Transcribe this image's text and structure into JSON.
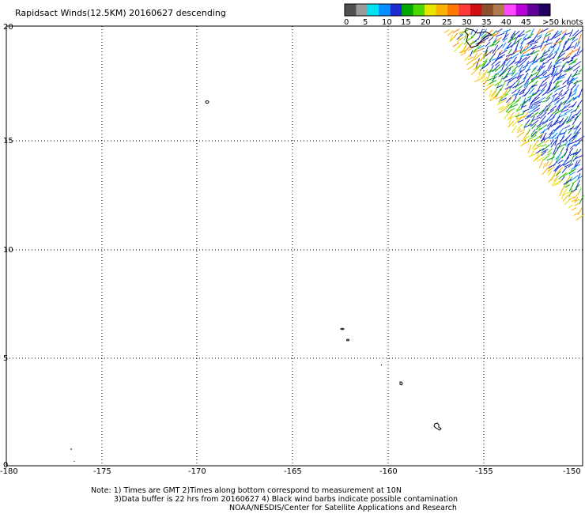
{
  "title": "Rapidsact Winds(12.5KM) 20160627 descending",
  "legend": {
    "colors": [
      "#505050",
      "#9a9a9a",
      "#00e2ef",
      "#0090ff",
      "#1c2cd0",
      "#00a800",
      "#4cd800",
      "#e6e600",
      "#f8b400",
      "#ff7800",
      "#ff3a3a",
      "#d01010",
      "#8a5030",
      "#b07a50",
      "#ff48ff",
      "#b800d8",
      "#600098",
      "#200060"
    ],
    "labels": [
      "0",
      "5",
      "10",
      "15",
      "20",
      "25",
      "30",
      "35",
      "40",
      "45",
      ">50 knots"
    ]
  },
  "axes": {
    "x_ticks": [
      "-180",
      "-175",
      "-170",
      "-165",
      "-160",
      "-155",
      "-150"
    ],
    "y_ticks": [
      "0",
      "5",
      "10",
      "15",
      "20"
    ]
  },
  "notes": [
    "Note: 1) Times are GMT 2)Times along bottom correspond to measurement at 10N",
    "3)Data buffer is 22 hrs from 20160627 4) Black wind barbs indicate possible contamination",
    "NOAA/NESDIS/Center for Satellite Applications and Research"
  ]
}
